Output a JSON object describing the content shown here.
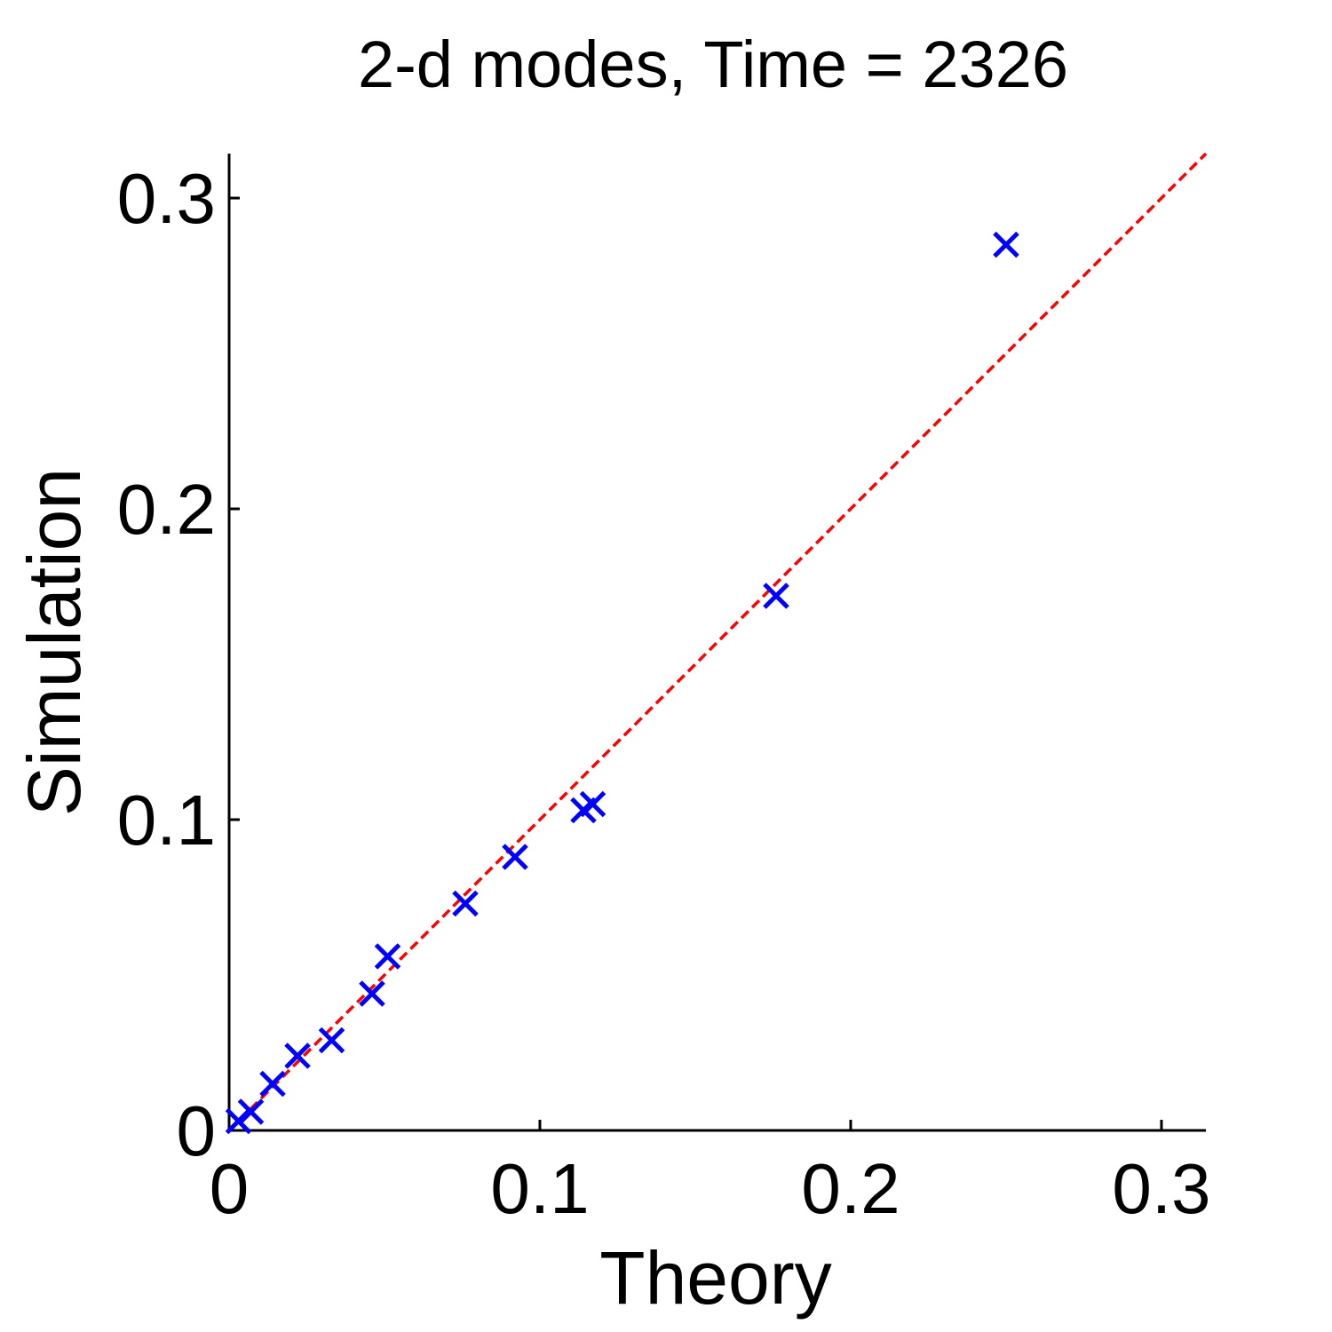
{
  "chart_data": {
    "type": "scatter",
    "title": "2-d modes, Time = 2326",
    "xlabel": "Theory",
    "ylabel": "Simulation",
    "xlim": [
      0,
      0.3143
    ],
    "ylim": [
      0,
      0.3143
    ],
    "xticks": [
      0,
      0.1,
      0.2,
      0.3
    ],
    "yticks": [
      0,
      0.1,
      0.2,
      0.3
    ],
    "xtick_labels": [
      "0",
      "0.1",
      "0.2",
      "0.3"
    ],
    "ytick_labels": [
      "0",
      "0.1",
      "0.2",
      "0.3"
    ],
    "grid": false,
    "legend": "none",
    "colors": {
      "markers": "#0000ff",
      "reference_line": "#ff0000",
      "axes": "#000000"
    },
    "series": [
      {
        "marker": "x",
        "points": [
          {
            "x": 0.003,
            "y": 0.003
          },
          {
            "x": 0.007,
            "y": 0.006
          },
          {
            "x": 0.014,
            "y": 0.015
          },
          {
            "x": 0.022,
            "y": 0.024
          },
          {
            "x": 0.033,
            "y": 0.029
          },
          {
            "x": 0.046,
            "y": 0.044
          },
          {
            "x": 0.051,
            "y": 0.056
          },
          {
            "x": 0.076,
            "y": 0.073
          },
          {
            "x": 0.092,
            "y": 0.088
          },
          {
            "x": 0.114,
            "y": 0.103
          },
          {
            "x": 0.117,
            "y": 0.105
          },
          {
            "x": 0.176,
            "y": 0.172
          },
          {
            "x": 0.25,
            "y": 0.285
          }
        ]
      }
    ],
    "reference_line": {
      "style": "dashed",
      "from": [
        0,
        0
      ],
      "to": [
        0.3143,
        0.3143
      ]
    }
  }
}
